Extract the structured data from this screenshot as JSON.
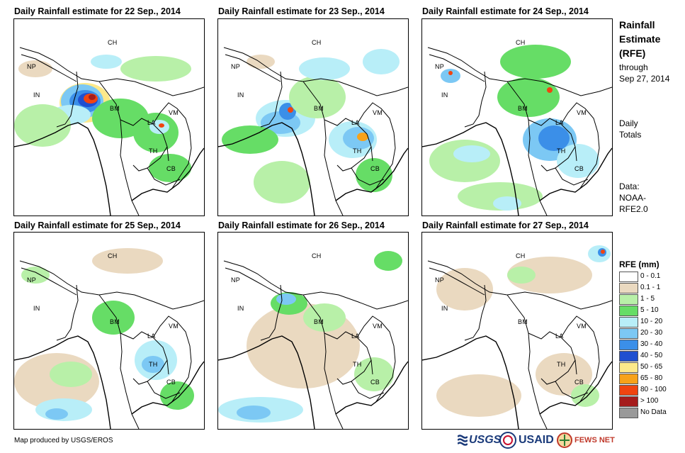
{
  "panels": [
    {
      "title": "Daily Rainfall estimate for 22 Sep., 2014"
    },
    {
      "title": "Daily Rainfall estimate for 23 Sep., 2014"
    },
    {
      "title": "Daily Rainfall estimate for 24 Sep., 2014"
    },
    {
      "title": "Daily Rainfall estimate for 25 Sep., 2014"
    },
    {
      "title": "Daily Rainfall estimate for 26 Sep., 2014"
    },
    {
      "title": "Daily Rainfall estimate for 27 Sep., 2014"
    }
  ],
  "map_labels": {
    "ch": "CH",
    "np": "NP",
    "in": "IN",
    "bm": "BM",
    "la": "LA",
    "vm": "VM",
    "th": "TH",
    "cb": "CB"
  },
  "sidebar": {
    "title_line1": "Rainfall",
    "title_line2": "Estimate",
    "title_line3": "(RFE)",
    "through_label": "through",
    "through_date": "Sep 27, 2014",
    "daily_line1": "Daily",
    "daily_line2": "Totals",
    "data_line1": "Data:",
    "data_line2": "NOAA-",
    "data_line3": "RFE2.0"
  },
  "legend": {
    "title": "RFE (mm)",
    "items": [
      {
        "label": "0 - 0.1",
        "color": "#ffffff"
      },
      {
        "label": "0.1 - 1",
        "color": "#ead9c0"
      },
      {
        "label": "1 - 5",
        "color": "#b8f0a8"
      },
      {
        "label": "5 - 10",
        "color": "#66dd66"
      },
      {
        "label": "10 - 20",
        "color": "#b8eef8"
      },
      {
        "label": "20 - 30",
        "color": "#7cc8f4"
      },
      {
        "label": "30 - 40",
        "color": "#3b8fe8"
      },
      {
        "label": "40 - 50",
        "color": "#1f4fd0"
      },
      {
        "label": "50 - 65",
        "color": "#fde98a"
      },
      {
        "label": "65 - 80",
        "color": "#f7a21a"
      },
      {
        "label": "80 - 100",
        "color": "#f04410"
      },
      {
        "label": "> 100",
        "color": "#a51c1c"
      },
      {
        "label": "No Data",
        "color": "#999999"
      }
    ]
  },
  "footer": {
    "credit": "Map produced by USGS/EROS",
    "usgs": "USGS",
    "usaid": "USAID",
    "fewsnet": "FEWS NET"
  }
}
